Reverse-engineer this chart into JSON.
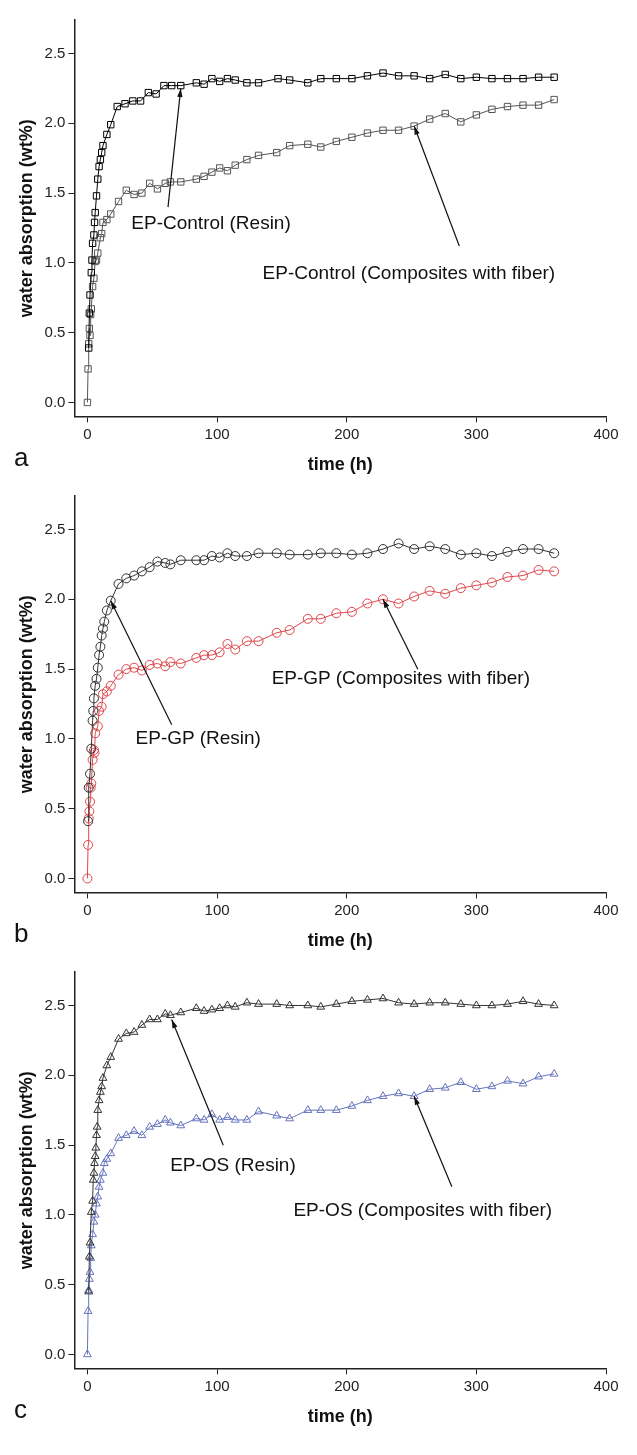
{
  "chart_data": [
    {
      "type": "line",
      "xlabel": "time (h)",
      "ylabel": "water absorption (wt%)",
      "xlim": [
        -10,
        400
      ],
      "ylim": [
        -0.1,
        2.74
      ],
      "xticks": [
        0,
        100,
        200,
        300,
        400
      ],
      "yticks": [
        {
          "value": 0,
          "label": "0.0"
        },
        0.5,
        {
          "value": 1,
          "label": "1.0"
        },
        1.5,
        {
          "value": 2,
          "label": "2.0"
        },
        2.5
      ],
      "grid": false,
      "legend": false,
      "marker": "square",
      "annotations": [
        {
          "text": "EP-Control (Resin)",
          "x": 72,
          "y": 2.25
        },
        {
          "text": "EP-Control (Composites with fiber)",
          "x": 252,
          "y": 1.98
        },
        "a"
      ],
      "series": [
        {
          "color": "#000000",
          "x": [
            1,
            1.5,
            2,
            3,
            3.5,
            4,
            5,
            5.5,
            6,
            7,
            8,
            9,
            10,
            11,
            12,
            15,
            18,
            23,
            29,
            35,
            41,
            47,
            53,
            59,
            65,
            72,
            84,
            90,
            96,
            102,
            108,
            114,
            123,
            132,
            147,
            156,
            170,
            180,
            192,
            204,
            216,
            228,
            240,
            252,
            264,
            276,
            288,
            300,
            312,
            324,
            336,
            348,
            360
          ],
          "values": [
            0.39,
            0.64,
            0.77,
            0.93,
            1.02,
            1.14,
            1.2,
            1.29,
            1.36,
            1.48,
            1.6,
            1.69,
            1.74,
            1.79,
            1.84,
            1.92,
            1.99,
            2.12,
            2.14,
            2.16,
            2.16,
            2.22,
            2.21,
            2.27,
            2.27,
            2.27,
            2.29,
            2.28,
            2.32,
            2.3,
            2.32,
            2.31,
            2.29,
            2.29,
            2.32,
            2.31,
            2.29,
            2.32,
            2.32,
            2.32,
            2.34,
            2.36,
            2.34,
            2.34,
            2.32,
            2.35,
            2.32,
            2.33,
            2.32,
            2.32,
            2.32,
            2.33,
            2.33
          ]
        },
        {
          "color": "#555555",
          "x": [
            0,
            0.5,
            1,
            1.5,
            2,
            2.5,
            3,
            4,
            5,
            6,
            7,
            8,
            10,
            11,
            12,
            15,
            18,
            24,
            30,
            36,
            42,
            48,
            54,
            60,
            64,
            72,
            84,
            90,
            96,
            102,
            108,
            114,
            123,
            132,
            146,
            156,
            170,
            180,
            192,
            204,
            216,
            228,
            240,
            252,
            264,
            276,
            288,
            300,
            312,
            324,
            336,
            348,
            360
          ],
          "values": [
            0.0,
            0.24,
            0.42,
            0.53,
            0.48,
            0.63,
            0.67,
            0.83,
            0.89,
            1.01,
            1.02,
            1.07,
            1.18,
            1.21,
            1.29,
            1.31,
            1.35,
            1.44,
            1.52,
            1.49,
            1.5,
            1.57,
            1.53,
            1.57,
            1.58,
            1.58,
            1.6,
            1.62,
            1.65,
            1.68,
            1.66,
            1.7,
            1.74,
            1.77,
            1.79,
            1.84,
            1.85,
            1.83,
            1.87,
            1.9,
            1.93,
            1.95,
            1.95,
            1.98,
            2.03,
            2.07,
            2.01,
            2.06,
            2.1,
            2.12,
            2.13,
            2.13,
            2.17
          ]
        }
      ]
    },
    {
      "type": "line",
      "xlabel": "time (h)",
      "ylabel": "water absorption (wt%)",
      "xlim": [
        -10,
        400
      ],
      "ylim": [
        -0.1,
        2.74
      ],
      "xticks": [
        0,
        100,
        200,
        300,
        400
      ],
      "yticks": [
        {
          "value": 0,
          "label": "0.0"
        },
        0.5,
        {
          "value": 1,
          "label": "1.0"
        },
        1.5,
        {
          "value": 2,
          "label": "2.0"
        },
        2.5
      ],
      "grid": false,
      "legend": false,
      "marker": "circle",
      "annotations": [
        {
          "text": "EP-GP (Resin)",
          "x": 18,
          "y": 1.99
        },
        {
          "text": "EP-GP (Composites with fiber)",
          "x": 228,
          "y": 2.0
        },
        "b"
      ],
      "series": [
        {
          "color": "#333333",
          "x": [
            0.5,
            1,
            2,
            3,
            4,
            4.5,
            5,
            6,
            7,
            8,
            9,
            10,
            11,
            12,
            13,
            15,
            18,
            24,
            30,
            36,
            42,
            48,
            54,
            60,
            64,
            72,
            84,
            90,
            96,
            102,
            108,
            114,
            123,
            132,
            146,
            156,
            170,
            180,
            192,
            204,
            216,
            228,
            240,
            252,
            264,
            276,
            288,
            300,
            312,
            324,
            336,
            348,
            360
          ],
          "values": [
            0.41,
            0.65,
            0.75,
            0.93,
            1.13,
            1.2,
            1.29,
            1.38,
            1.43,
            1.51,
            1.6,
            1.66,
            1.74,
            1.79,
            1.84,
            1.92,
            1.99,
            2.11,
            2.15,
            2.17,
            2.2,
            2.23,
            2.27,
            2.26,
            2.25,
            2.28,
            2.28,
            2.28,
            2.31,
            2.3,
            2.33,
            2.31,
            2.31,
            2.33,
            2.33,
            2.32,
            2.32,
            2.33,
            2.33,
            2.32,
            2.33,
            2.36,
            2.4,
            2.36,
            2.38,
            2.36,
            2.32,
            2.33,
            2.31,
            2.34,
            2.36,
            2.36,
            2.33
          ]
        },
        {
          "color": "#e0474c",
          "x": [
            0,
            0.5,
            1,
            1.5,
            2,
            2.5,
            3,
            4,
            5,
            5.5,
            6,
            8,
            9,
            11,
            12,
            15,
            18,
            24,
            30,
            36,
            42,
            48,
            54,
            60,
            64,
            72,
            84,
            90,
            96,
            102,
            108,
            114,
            123,
            132,
            146,
            156,
            170,
            180,
            192,
            204,
            216,
            228,
            240,
            252,
            264,
            276,
            288,
            300,
            312,
            324,
            336,
            348,
            360
          ],
          "values": [
            0.0,
            0.24,
            0.43,
            0.48,
            0.55,
            0.65,
            0.68,
            0.85,
            0.92,
            0.9,
            1.04,
            1.09,
            1.2,
            1.23,
            1.32,
            1.34,
            1.38,
            1.46,
            1.5,
            1.51,
            1.49,
            1.53,
            1.54,
            1.52,
            1.55,
            1.54,
            1.58,
            1.6,
            1.6,
            1.62,
            1.68,
            1.64,
            1.7,
            1.7,
            1.76,
            1.78,
            1.86,
            1.86,
            1.9,
            1.91,
            1.97,
            2.0,
            1.97,
            2.02,
            2.06,
            2.04,
            2.08,
            2.1,
            2.12,
            2.16,
            2.17,
            2.21,
            2.2
          ]
        }
      ]
    },
    {
      "type": "line",
      "xlabel": "time (h)",
      "ylabel": "water absorption (wt%)",
      "xlim": [
        -10,
        400
      ],
      "ylim": [
        -0.1,
        2.74
      ],
      "xticks": [
        0,
        100,
        200,
        300,
        400
      ],
      "yticks": [
        {
          "value": 0,
          "label": "0.0"
        },
        0.5,
        {
          "value": 1,
          "label": "1.0"
        },
        1.5,
        {
          "value": 2,
          "label": "2.0"
        },
        2.5
      ],
      "grid": false,
      "legend": false,
      "marker": "triangle",
      "annotations": [
        {
          "text": "EP-OS (Resin)",
          "x": 65,
          "y": 2.4
        },
        {
          "text": "EP-OS (Composites with fiber)",
          "x": 252,
          "y": 1.85
        },
        "c"
      ],
      "series": [
        {
          "color": "#333333",
          "x": [
            1,
            1.5,
            2,
            3,
            4,
            4.5,
            5,
            5.5,
            6,
            6.5,
            7,
            7.5,
            8,
            9,
            10,
            11,
            12,
            15,
            18,
            24,
            30,
            36,
            42,
            48,
            54,
            60,
            64,
            72,
            84,
            90,
            96,
            102,
            108,
            114,
            123,
            132,
            146,
            156,
            170,
            180,
            192,
            204,
            216,
            228,
            240,
            252,
            264,
            276,
            288,
            300,
            312,
            324,
            336,
            348,
            360
          ],
          "values": [
            0.45,
            0.7,
            0.8,
            1.02,
            1.1,
            1.25,
            1.3,
            1.37,
            1.42,
            1.48,
            1.57,
            1.63,
            1.75,
            1.82,
            1.88,
            1.92,
            1.98,
            2.07,
            2.13,
            2.26,
            2.3,
            2.31,
            2.36,
            2.4,
            2.4,
            2.44,
            2.43,
            2.45,
            2.48,
            2.46,
            2.47,
            2.48,
            2.5,
            2.49,
            2.52,
            2.51,
            2.51,
            2.5,
            2.5,
            2.49,
            2.51,
            2.53,
            2.54,
            2.55,
            2.52,
            2.51,
            2.52,
            2.52,
            2.51,
            2.5,
            2.5,
            2.51,
            2.53,
            2.51,
            2.5
          ]
        },
        {
          "color": "#6674bd",
          "x": [
            0,
            0.5,
            1,
            1.5,
            2,
            2.5,
            3,
            4,
            5,
            6,
            7,
            8,
            9,
            10,
            12,
            13,
            15,
            18,
            24,
            30,
            36,
            42,
            48,
            54,
            60,
            64,
            72,
            84,
            90,
            96,
            102,
            108,
            114,
            123,
            132,
            146,
            156,
            170,
            180,
            192,
            204,
            216,
            228,
            240,
            252,
            264,
            276,
            288,
            300,
            312,
            324,
            336,
            348,
            360
          ],
          "values": [
            0.0,
            0.31,
            0.46,
            0.54,
            0.59,
            0.69,
            0.78,
            0.86,
            0.95,
            1.0,
            1.08,
            1.13,
            1.2,
            1.25,
            1.3,
            1.37,
            1.4,
            1.44,
            1.55,
            1.57,
            1.6,
            1.57,
            1.63,
            1.65,
            1.68,
            1.66,
            1.64,
            1.69,
            1.68,
            1.72,
            1.68,
            1.7,
            1.68,
            1.68,
            1.74,
            1.71,
            1.69,
            1.75,
            1.75,
            1.75,
            1.78,
            1.82,
            1.85,
            1.87,
            1.85,
            1.9,
            1.91,
            1.95,
            1.9,
            1.92,
            1.96,
            1.94,
            1.99,
            2.01
          ]
        }
      ]
    }
  ]
}
